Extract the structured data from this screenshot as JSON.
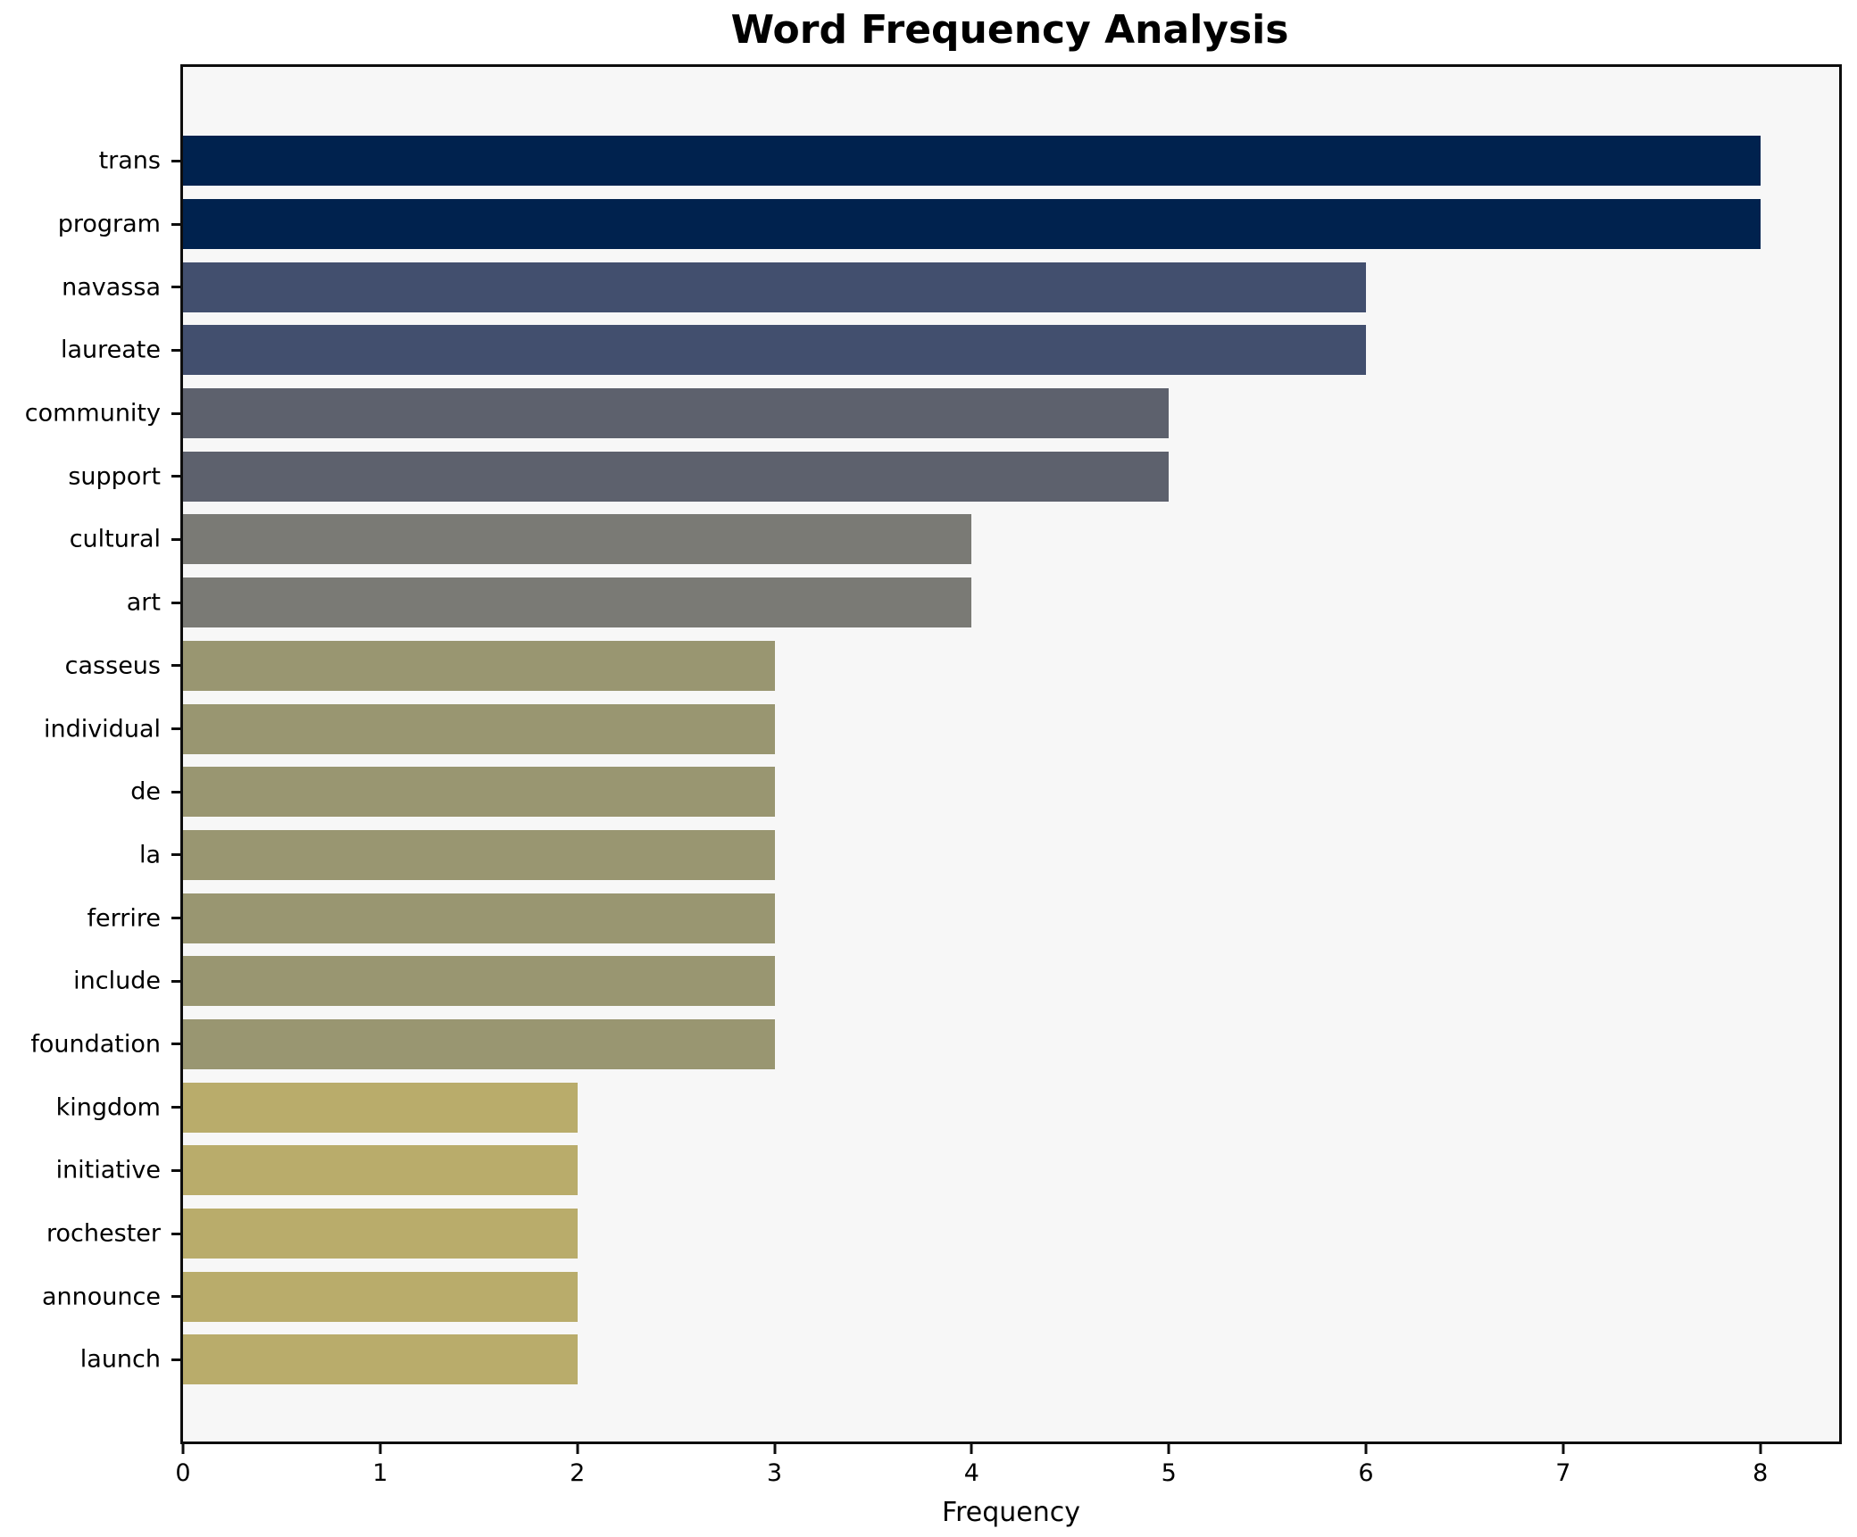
{
  "title": "Word Frequency Analysis",
  "chart_data": {
    "type": "bar",
    "orientation": "horizontal",
    "title": "Word Frequency Analysis",
    "xlabel": "Frequency",
    "ylabel": "",
    "xlim": [
      0,
      8.4
    ],
    "xticks": [
      0,
      1,
      2,
      3,
      4,
      5,
      6,
      7,
      8
    ],
    "grid": false,
    "legend": "none",
    "plot_background": "#f7f7f7",
    "spine_color": "#0d0d0d",
    "categories": [
      "trans",
      "program",
      "navassa",
      "laureate",
      "community",
      "support",
      "cultural",
      "art",
      "casseus",
      "individual",
      "de",
      "la",
      "ferrire",
      "include",
      "foundation",
      "kingdom",
      "initiative",
      "rochester",
      "announce",
      "launch"
    ],
    "values": [
      8,
      8,
      6,
      6,
      5,
      5,
      4,
      4,
      3,
      3,
      3,
      3,
      3,
      3,
      3,
      2,
      2,
      2,
      2,
      2
    ],
    "bar_colors": [
      "#00224e",
      "#00224e",
      "#424f6e",
      "#424f6e",
      "#5d616d",
      "#5d616d",
      "#7a7a75",
      "#7a7a75",
      "#999671",
      "#999671",
      "#999671",
      "#999671",
      "#999671",
      "#999671",
      "#999671",
      "#b9ac6b",
      "#b9ac6b",
      "#b9ac6b",
      "#b9ac6b",
      "#b9ac6b"
    ]
  }
}
